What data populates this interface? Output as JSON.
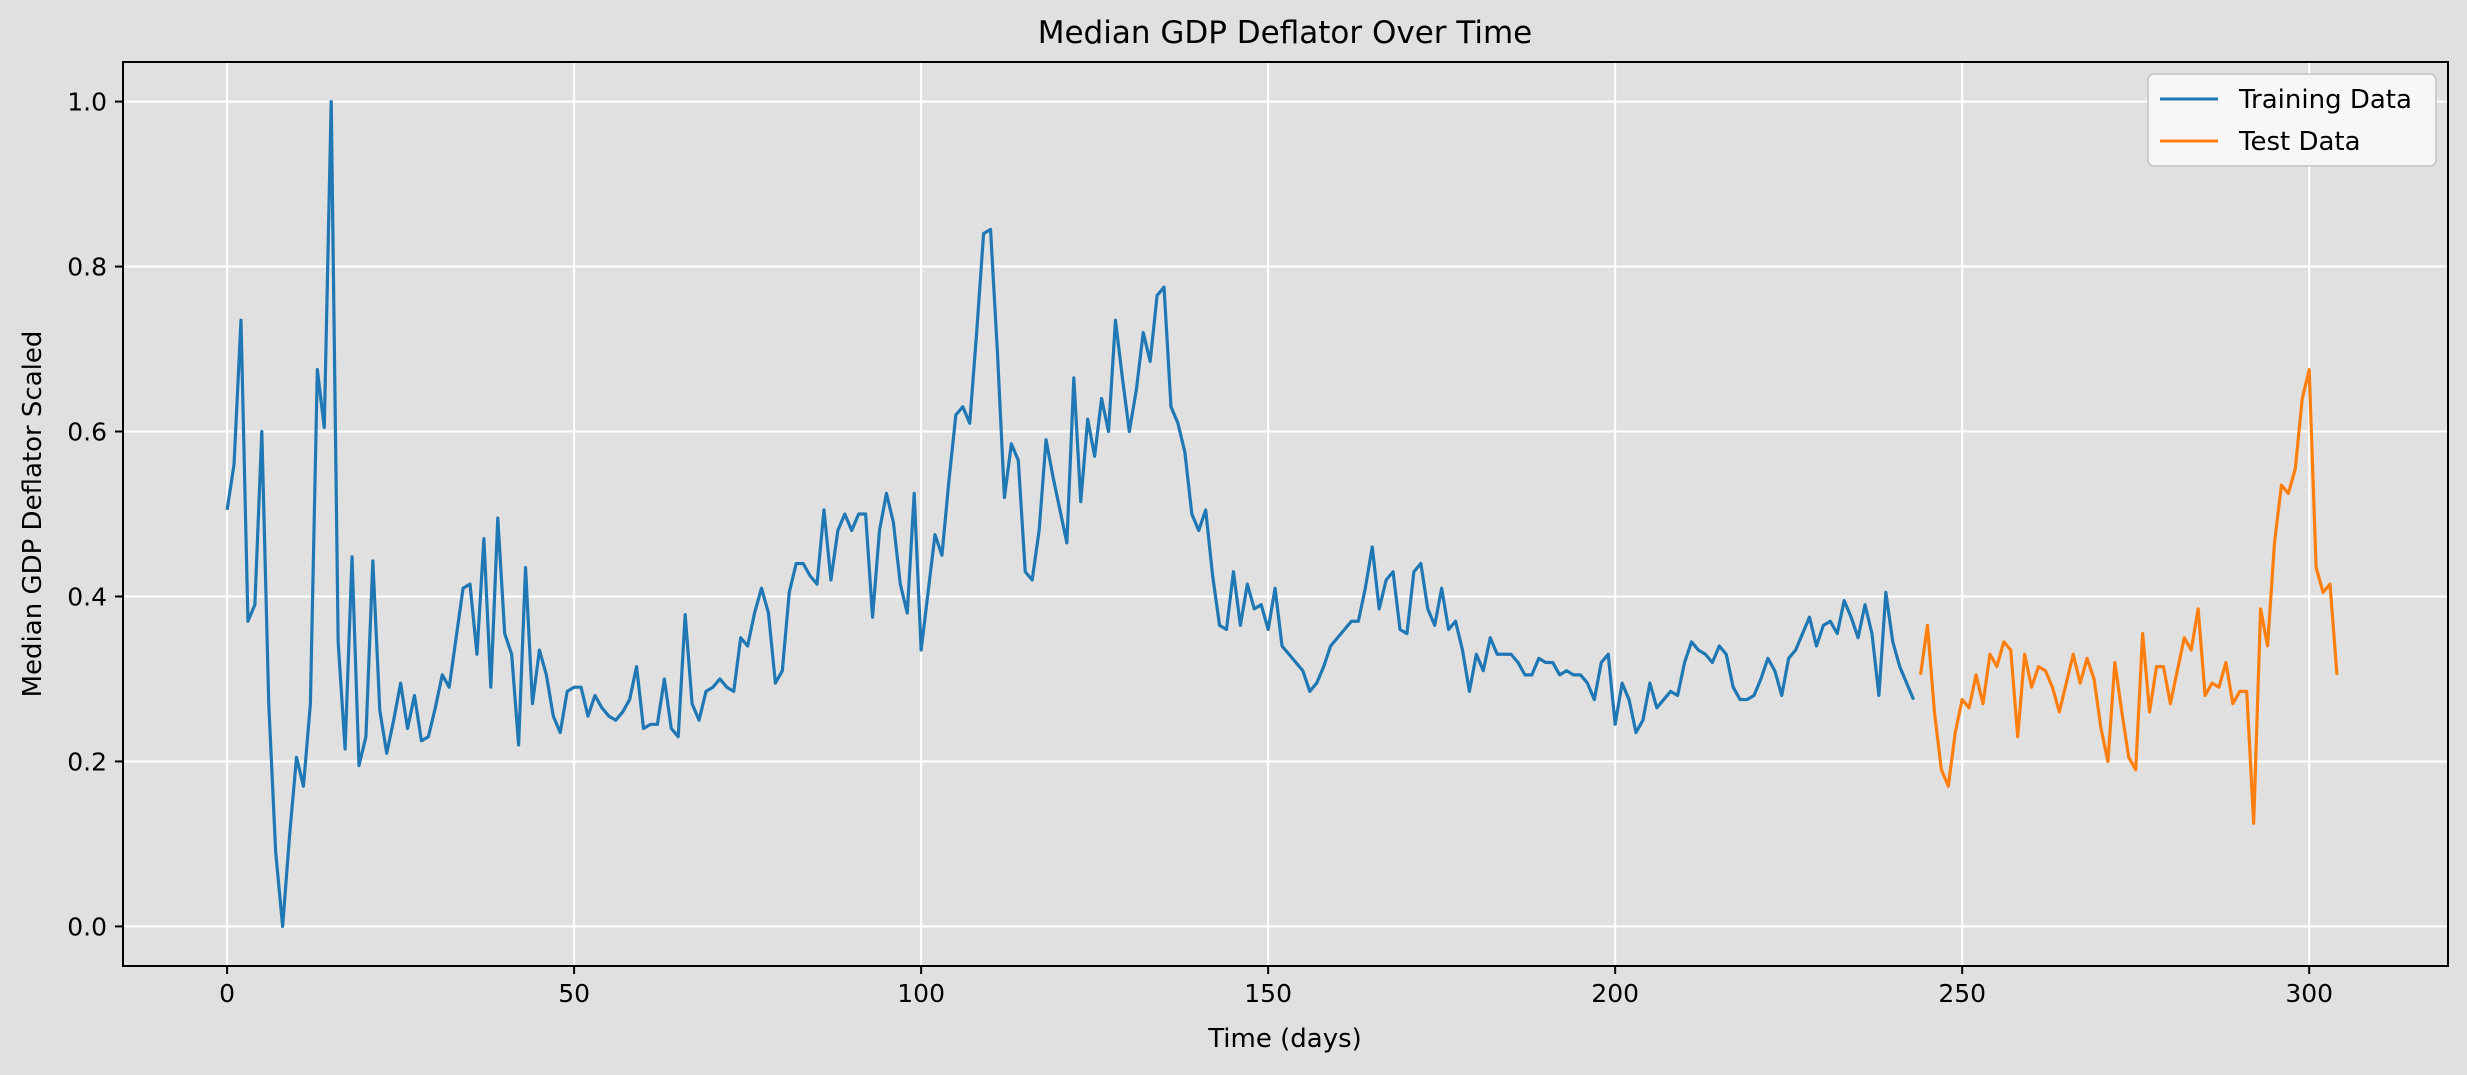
{
  "chart_data": {
    "type": "line",
    "title": "Median GDP Deflator Over Time",
    "xlabel": "Time (days)",
    "ylabel": "Median GDP Deflator Scaled",
    "xlim": [
      -15,
      320
    ],
    "ylim": [
      -0.048,
      1.048
    ],
    "x_ticks": [
      0,
      50,
      100,
      150,
      200,
      250,
      300
    ],
    "y_ticks": [
      0.0,
      0.2,
      0.4,
      0.6,
      0.8,
      1.0
    ],
    "x_tick_labels": [
      "0",
      "50",
      "100",
      "150",
      "200",
      "250",
      "300"
    ],
    "y_tick_labels": [
      "0.0",
      "0.2",
      "0.4",
      "0.6",
      "0.8",
      "1.0"
    ],
    "grid": true,
    "legend_position": "top-right",
    "background_color": "#e0e0e0",
    "series": [
      {
        "name": "Training Data",
        "color": "#1f77b4",
        "x_start": 0,
        "values": [
          0.505,
          0.56,
          0.735,
          0.37,
          0.39,
          0.6,
          0.27,
          0.09,
          0.0,
          0.11,
          0.205,
          0.17,
          0.27,
          0.675,
          0.605,
          1.0,
          0.345,
          0.215,
          0.448,
          0.195,
          0.23,
          0.443,
          0.262,
          0.21,
          0.25,
          0.295,
          0.24,
          0.28,
          0.225,
          0.23,
          0.265,
          0.305,
          0.29,
          0.35,
          0.41,
          0.415,
          0.33,
          0.47,
          0.29,
          0.495,
          0.355,
          0.33,
          0.22,
          0.435,
          0.27,
          0.335,
          0.305,
          0.255,
          0.235,
          0.285,
          0.29,
          0.29,
          0.255,
          0.28,
          0.265,
          0.255,
          0.25,
          0.26,
          0.275,
          0.315,
          0.24,
          0.245,
          0.245,
          0.3,
          0.24,
          0.23,
          0.378,
          0.27,
          0.25,
          0.285,
          0.29,
          0.3,
          0.29,
          0.285,
          0.35,
          0.34,
          0.38,
          0.41,
          0.38,
          0.295,
          0.31,
          0.405,
          0.44,
          0.44,
          0.425,
          0.415,
          0.505,
          0.42,
          0.48,
          0.5,
          0.48,
          0.5,
          0.5,
          0.375,
          0.48,
          0.525,
          0.49,
          0.415,
          0.38,
          0.525,
          0.335,
          0.405,
          0.475,
          0.45,
          0.54,
          0.62,
          0.63,
          0.61,
          0.72,
          0.84,
          0.845,
          0.695,
          0.52,
          0.585,
          0.565,
          0.43,
          0.42,
          0.48,
          0.59,
          0.545,
          0.505,
          0.465,
          0.665,
          0.515,
          0.615,
          0.57,
          0.64,
          0.6,
          0.735,
          0.665,
          0.6,
          0.65,
          0.72,
          0.685,
          0.765,
          0.775,
          0.63,
          0.61,
          0.575,
          0.5,
          0.48,
          0.505,
          0.425,
          0.365,
          0.36,
          0.43,
          0.365,
          0.415,
          0.385,
          0.39,
          0.36,
          0.41,
          0.34,
          0.33,
          0.32,
          0.31,
          0.285,
          0.295,
          0.315,
          0.34,
          0.35,
          0.36,
          0.37,
          0.37,
          0.41,
          0.46,
          0.385,
          0.42,
          0.43,
          0.36,
          0.355,
          0.43,
          0.44,
          0.385,
          0.365,
          0.41,
          0.36,
          0.37,
          0.335,
          0.285,
          0.33,
          0.31,
          0.35,
          0.33,
          0.33,
          0.33,
          0.32,
          0.305,
          0.305,
          0.325,
          0.32,
          0.32,
          0.305,
          0.31,
          0.305,
          0.305,
          0.295,
          0.275,
          0.32,
          0.33,
          0.245,
          0.295,
          0.275,
          0.235,
          0.25,
          0.295,
          0.265,
          0.275,
          0.285,
          0.28,
          0.32,
          0.345,
          0.335,
          0.33,
          0.32,
          0.34,
          0.33,
          0.29,
          0.275,
          0.275,
          0.28,
          0.3,
          0.325,
          0.31,
          0.28,
          0.325,
          0.335,
          0.355,
          0.375,
          0.34,
          0.365,
          0.37,
          0.355,
          0.395,
          0.375,
          0.35,
          0.39,
          0.355,
          0.28,
          0.405,
          0.345,
          0.315,
          0.295,
          0.275
        ]
      },
      {
        "name": "Test Data",
        "color": "#ff7f0e",
        "x_start": 244,
        "values": [
          0.305,
          0.365,
          0.26,
          0.19,
          0.17,
          0.235,
          0.275,
          0.265,
          0.305,
          0.27,
          0.33,
          0.315,
          0.345,
          0.335,
          0.23,
          0.33,
          0.29,
          0.315,
          0.31,
          0.29,
          0.26,
          0.295,
          0.33,
          0.295,
          0.325,
          0.3,
          0.24,
          0.2,
          0.32,
          0.26,
          0.205,
          0.19,
          0.355,
          0.26,
          0.315,
          0.315,
          0.27,
          0.31,
          0.35,
          0.335,
          0.385,
          0.28,
          0.295,
          0.29,
          0.32,
          0.27,
          0.285,
          0.285,
          0.125,
          0.385,
          0.34,
          0.465,
          0.535,
          0.525,
          0.555,
          0.64,
          0.675,
          0.435,
          0.405,
          0.415,
          0.305
        ]
      }
    ]
  }
}
